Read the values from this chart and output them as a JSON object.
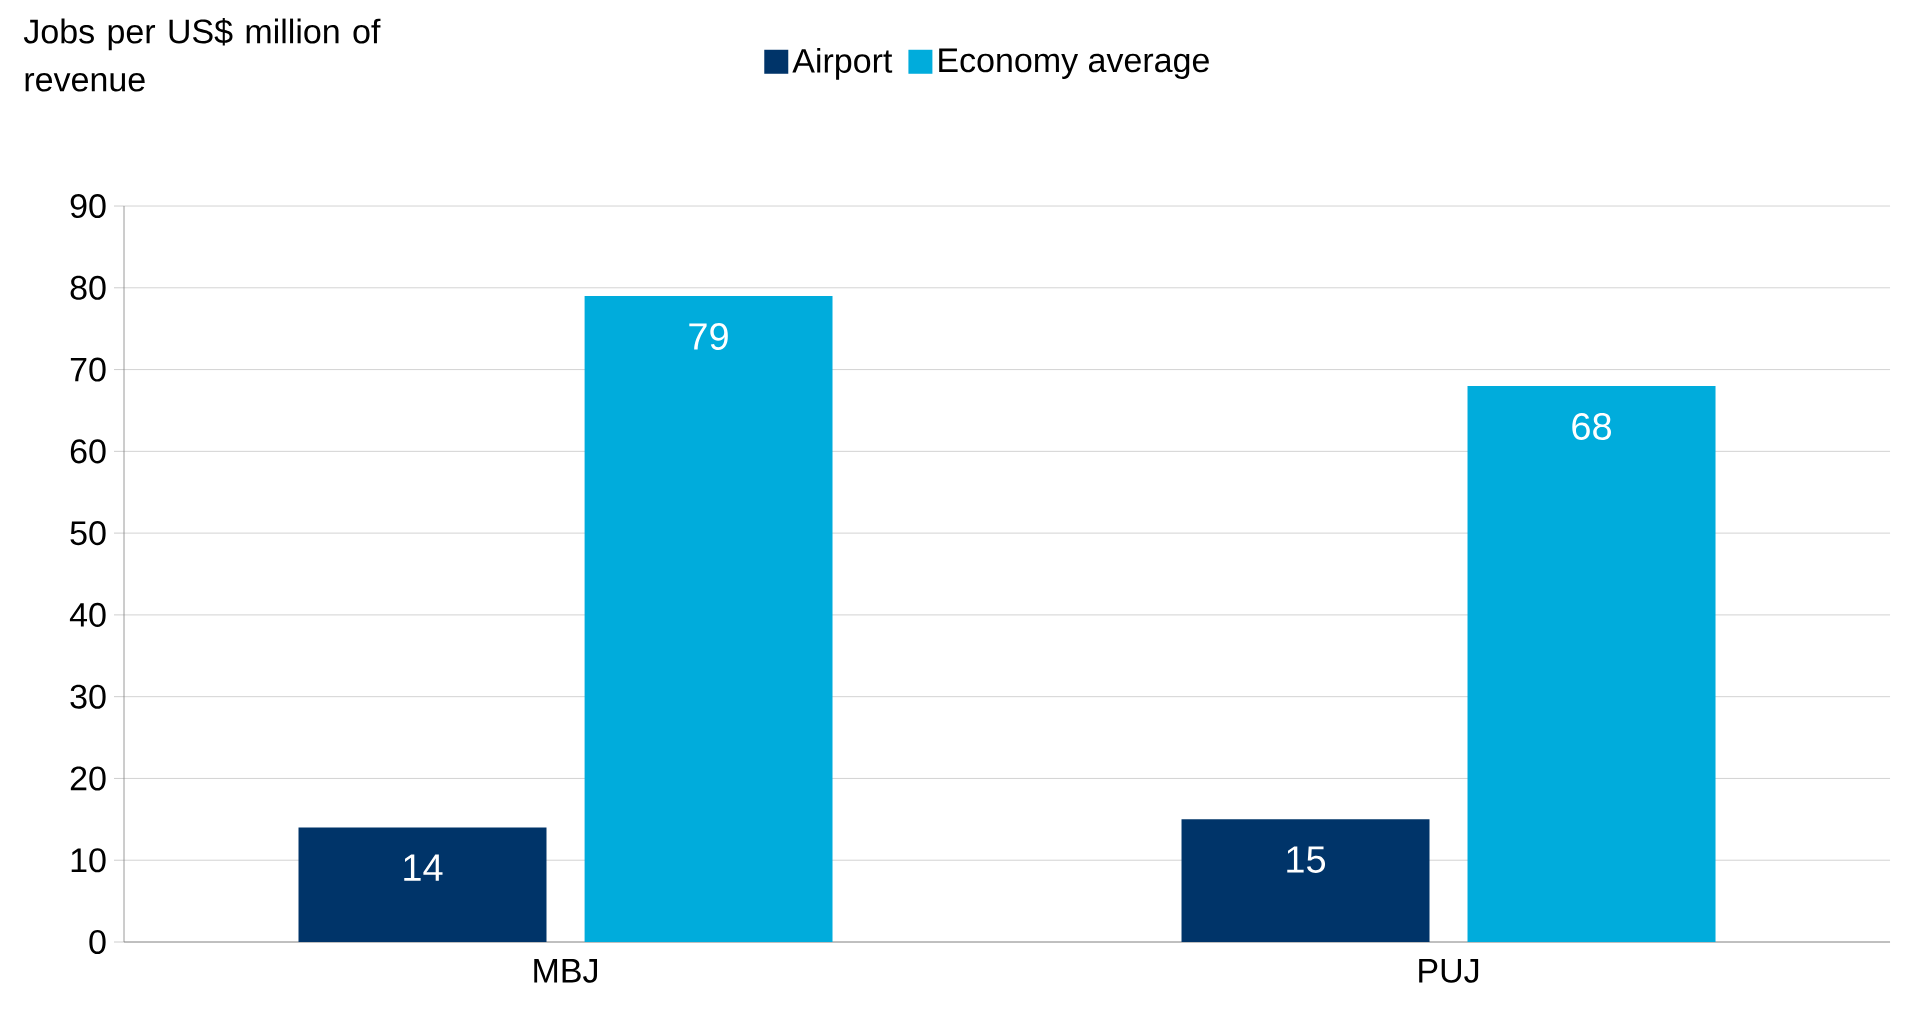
{
  "chart_data": {
    "type": "bar",
    "ylabel": "Jobs per US$ million of revenue",
    "categories": [
      "MBJ",
      "PUJ"
    ],
    "series": [
      {
        "name": "Airport",
        "color": "#003469",
        "values": [
          14,
          15
        ]
      },
      {
        "name": "Economy average",
        "color": "#00acdc",
        "values": [
          79,
          68
        ]
      }
    ],
    "ylim": [
      0,
      90
    ],
    "yticks": [
      0,
      10,
      20,
      30,
      40,
      50,
      60,
      70,
      80,
      90
    ],
    "grid": "y",
    "legend": "top",
    "data_labels": true
  }
}
